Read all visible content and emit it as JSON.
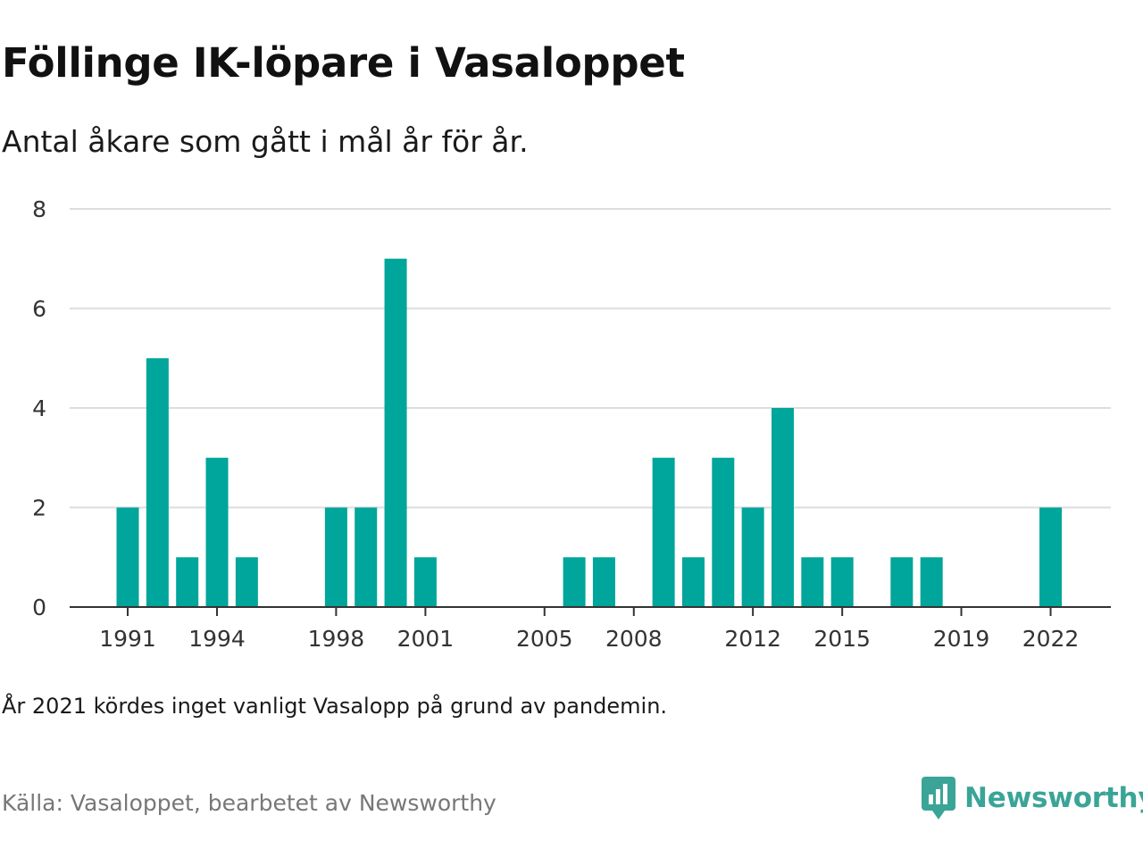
{
  "header": {
    "title": "Föllinge IK-löpare i Vasaloppet",
    "subtitle": "Antal åkare som gått i mål år för år."
  },
  "footer": {
    "note": "År 2021 kördes inget vanligt Vasalopp på grund av pandemin.",
    "source": "Källa: Vasaloppet, bearbetet av Newsworthy",
    "brand": "Newsworthy",
    "brand_icon": "newsworthy-logo-icon"
  },
  "colors": {
    "bar": "#00a59b",
    "grid": "#dddddd",
    "axis": "#333333",
    "brand": "#3aa497"
  },
  "chart_data": {
    "type": "bar",
    "title": "Föllinge IK-löpare i Vasaloppet",
    "subtitle": "Antal åkare som gått i mål år för år.",
    "xlabel": "",
    "ylabel": "",
    "x_range": [
      1990,
      2023
    ],
    "ylim": [
      0,
      8
    ],
    "yticks": [
      0,
      2,
      4,
      6,
      8
    ],
    "xticks": [
      1991,
      1994,
      1998,
      2001,
      2005,
      2008,
      2012,
      2015,
      2019,
      2022
    ],
    "grid": true,
    "legend": "none",
    "x": [
      1991,
      1992,
      1993,
      1994,
      1995,
      1998,
      1999,
      2000,
      2001,
      2006,
      2007,
      2009,
      2010,
      2011,
      2012,
      2013,
      2014,
      2015,
      2017,
      2018,
      2022
    ],
    "values": [
      2,
      5,
      1,
      3,
      1,
      2,
      2,
      7,
      1,
      1,
      1,
      3,
      1,
      3,
      2,
      4,
      1,
      1,
      1,
      1,
      2
    ]
  }
}
